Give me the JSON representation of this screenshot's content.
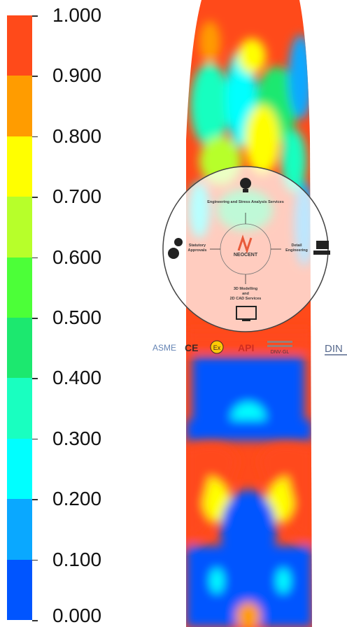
{
  "colorbar": {
    "labels": [
      "1.000",
      "0.900",
      "0.800",
      "0.700",
      "0.600",
      "0.500",
      "0.400",
      "0.300",
      "0.200",
      "0.100",
      "0.000"
    ],
    "colors": [
      "#ff4a1a",
      "#ff9c00",
      "#ffff00",
      "#b7ff2a",
      "#4cff38",
      "#1ce86f",
      "#19ffc0",
      "#00ffff",
      "#0aa8ff",
      "#0055ff"
    ]
  },
  "diagram": {
    "top": "Engineering and Stress Analysis Services",
    "left_1": "Statutory",
    "left_2": "Approvals",
    "right_1": "Detail",
    "right_2": "Engineering",
    "bottom_1": "3D Modelling",
    "bottom_2": "and",
    "bottom_3": "2D CAD Services",
    "brand": "NEOCENT"
  },
  "logos": {
    "asme": "ASME",
    "ce": "CE",
    "ex": "Ex",
    "api": "API",
    "dnv": "DNV·GL",
    "din": "DIN"
  }
}
